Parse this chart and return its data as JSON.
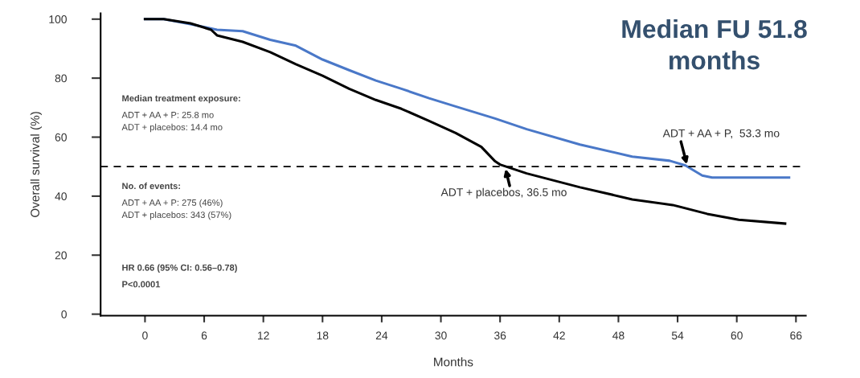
{
  "chart_data": {
    "type": "line",
    "title": "Median FU 51.8\nmonths",
    "xlabel": "Months",
    "ylabel": "Overall survival (%)",
    "xlim": [
      -4.5,
      67
    ],
    "xticks": [
      0,
      6,
      12,
      18,
      24,
      30,
      36,
      42,
      48,
      54,
      60,
      66
    ],
    "ylim": [
      -0.5,
      102
    ],
    "yticks": [
      0,
      20,
      40,
      60,
      80,
      100
    ],
    "grid": false,
    "legend": false,
    "line_style": "solid",
    "marker": "none",
    "series": [
      {
        "color": "#4a78c8",
        "x": [
          0,
          1.9,
          4.6,
          7.3,
          9.9,
          12.7,
          15.3,
          18.0,
          20.7,
          23.4,
          26.0,
          28.8,
          31.5,
          35.5,
          38.7,
          44.1,
          49.4,
          53.2,
          54.8,
          56.5,
          57.5,
          65.3
        ],
        "values": [
          100,
          100,
          98.3,
          96.4,
          95.9,
          93,
          91,
          86.3,
          82.7,
          79.2,
          76.4,
          73.2,
          70.4,
          66.3,
          62.7,
          57.5,
          53.4,
          52,
          50.4,
          47,
          46.3,
          46.3
        ]
      },
      {
        "color": "#000000",
        "x": [
          0,
          1.9,
          4.6,
          6.7,
          7.3,
          9.9,
          12.7,
          15.3,
          18.0,
          20.7,
          23.4,
          26.0,
          28.8,
          31.5,
          34.1,
          35.5,
          36.0,
          38.7,
          44.1,
          49.4,
          53.5,
          57.0,
          60.2,
          64.9
        ],
        "values": [
          100,
          100,
          98.6,
          96.4,
          94.5,
          92.3,
          88.8,
          84.7,
          80.8,
          76.4,
          72.6,
          69.6,
          65.5,
          61.4,
          56.7,
          51.8,
          50.7,
          47.7,
          43,
          38.9,
          37,
          34,
          32,
          30.7
        ]
      }
    ],
    "ref_lines": [
      {
        "axis": "y",
        "value": 50,
        "color": "#000000",
        "line_style": "dashed"
      }
    ],
    "annotations": [
      {
        "text": "ADT + AA + P,  53.3 mo",
        "x": 55,
        "y": 50
      },
      {
        "text": "ADT + placebos, 36.5 mo",
        "x": 36.5,
        "y": 50
      },
      "Median treatment exposure:\nADT + AA + P: 25.8 mo\nADT + placebos: 14.4 mo",
      "No. of events:\nADT + AA + P: 275 (46%)\nADT + placebos: 343 (57%)",
      "HR 0.66 (95% CI: 0.56–0.78)\nP<0.0001"
    ]
  }
}
